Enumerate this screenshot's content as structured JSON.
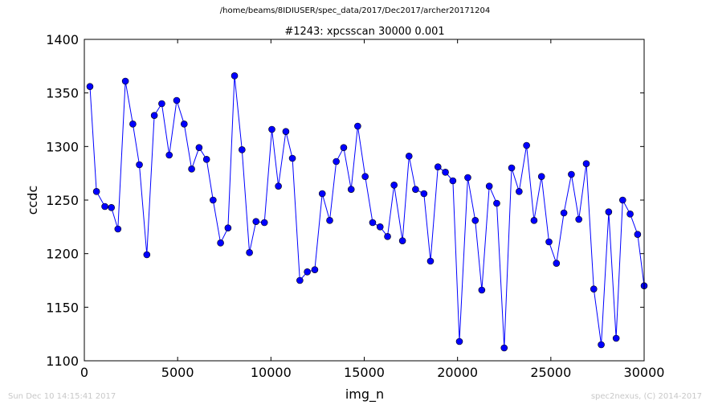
{
  "suptitle": "/home/beams/8IDIUSER/spec_data/2017/Dec2017/archer20171204",
  "footer": {
    "timestamp": "Sun Dec 10 14:15:41 2017",
    "credit": "spec2nexus, (C) 2014-2017"
  },
  "colors": {
    "series": "#0000ff",
    "marker": "#0000ff"
  },
  "chart_data": {
    "type": "line",
    "title": "#1243: xpcsscan 30000 0.001",
    "xlabel": "img_n",
    "ylabel": "ccdc",
    "xlim": [
      0,
      30000
    ],
    "ylim": [
      1100,
      1400
    ],
    "xticks": [
      0,
      5000,
      10000,
      15000,
      20000,
      25000,
      30000
    ],
    "yticks": [
      1100,
      1150,
      1200,
      1250,
      1300,
      1350,
      1400
    ],
    "grid": false,
    "legend": false,
    "series": [
      {
        "x": [
          300,
          650,
          1100,
          1450,
          1800,
          2200,
          2600,
          2950,
          3350,
          3750,
          4150,
          4550,
          4950,
          5350,
          5750,
          6150,
          6550,
          6900,
          7300,
          7700,
          8050,
          8450,
          8850,
          9200,
          9650,
          10050,
          10400,
          10800,
          11150,
          11550,
          11950,
          12350,
          12750,
          13150,
          13500,
          13900,
          14300,
          14650,
          15050,
          15450,
          15850,
          16250,
          16600,
          17050,
          17400,
          17750,
          18200,
          18550,
          18950,
          19350,
          19750,
          20100,
          20550,
          20950,
          21300,
          21700,
          22100,
          22500,
          22900,
          23300,
          23700,
          24100,
          24500,
          24900,
          25300,
          25700,
          26100,
          26500,
          26900,
          27300,
          27700,
          28100,
          28500,
          28850,
          29250,
          29650,
          30000
        ],
        "y": [
          1356,
          1258,
          1244,
          1243,
          1223,
          1361,
          1321,
          1283,
          1199,
          1329,
          1340,
          1292,
          1343,
          1321,
          1279,
          1299,
          1288,
          1250,
          1210,
          1224,
          1366,
          1297,
          1201,
          1230,
          1229,
          1316,
          1263,
          1314,
          1289,
          1175,
          1183,
          1185,
          1256,
          1231,
          1286,
          1299,
          1260,
          1319,
          1272,
          1229,
          1225,
          1216,
          1264,
          1212,
          1291,
          1260,
          1256,
          1193,
          1281,
          1276,
          1268,
          1118,
          1271,
          1231,
          1166,
          1263,
          1247,
          1112,
          1280,
          1258,
          1301,
          1231,
          1272,
          1211,
          1191,
          1238,
          1274,
          1232,
          1284,
          1167,
          1115,
          1239,
          1121,
          1250,
          1237,
          1218,
          1170
        ]
      }
    ]
  }
}
